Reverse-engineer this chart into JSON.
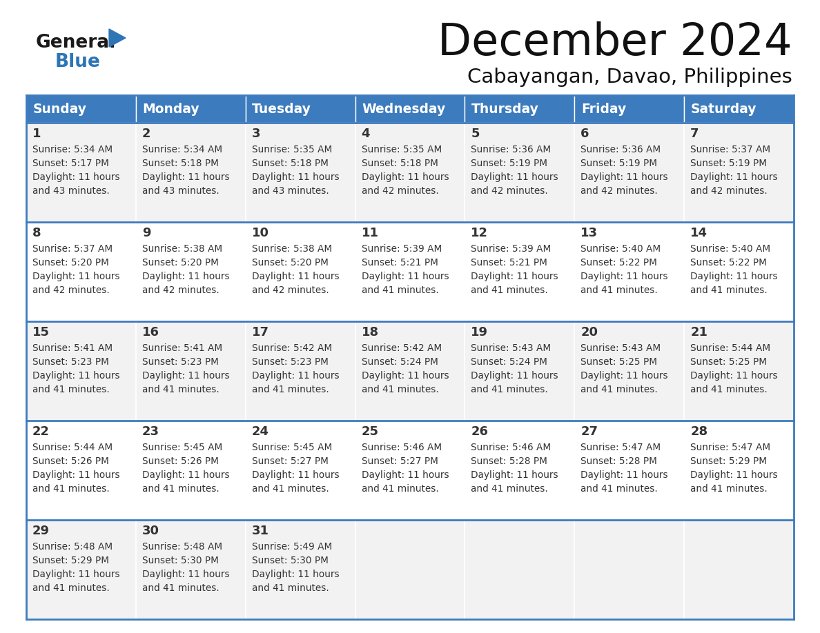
{
  "title": "December 2024",
  "subtitle": "Cabayangan, Davao, Philippines",
  "header_color": "#3C7BBD",
  "header_text_color": "#FFFFFF",
  "row_bg_colors": [
    "#F2F2F2",
    "#FFFFFF"
  ],
  "border_color": "#3C7BBD",
  "cell_border_color": "#FFFFFF",
  "text_color": "#333333",
  "days_of_week": [
    "Sunday",
    "Monday",
    "Tuesday",
    "Wednesday",
    "Thursday",
    "Friday",
    "Saturday"
  ],
  "logo_general_color": "#1a1a1a",
  "logo_blue_color": "#2E75B6",
  "calendar_data": [
    [
      {
        "day": 1,
        "sunrise": "5:34 AM",
        "sunset": "5:17 PM",
        "daylight_hours": 11,
        "daylight_minutes": 43
      },
      {
        "day": 2,
        "sunrise": "5:34 AM",
        "sunset": "5:18 PM",
        "daylight_hours": 11,
        "daylight_minutes": 43
      },
      {
        "day": 3,
        "sunrise": "5:35 AM",
        "sunset": "5:18 PM",
        "daylight_hours": 11,
        "daylight_minutes": 43
      },
      {
        "day": 4,
        "sunrise": "5:35 AM",
        "sunset": "5:18 PM",
        "daylight_hours": 11,
        "daylight_minutes": 42
      },
      {
        "day": 5,
        "sunrise": "5:36 AM",
        "sunset": "5:19 PM",
        "daylight_hours": 11,
        "daylight_minutes": 42
      },
      {
        "day": 6,
        "sunrise": "5:36 AM",
        "sunset": "5:19 PM",
        "daylight_hours": 11,
        "daylight_minutes": 42
      },
      {
        "day": 7,
        "sunrise": "5:37 AM",
        "sunset": "5:19 PM",
        "daylight_hours": 11,
        "daylight_minutes": 42
      }
    ],
    [
      {
        "day": 8,
        "sunrise": "5:37 AM",
        "sunset": "5:20 PM",
        "daylight_hours": 11,
        "daylight_minutes": 42
      },
      {
        "day": 9,
        "sunrise": "5:38 AM",
        "sunset": "5:20 PM",
        "daylight_hours": 11,
        "daylight_minutes": 42
      },
      {
        "day": 10,
        "sunrise": "5:38 AM",
        "sunset": "5:20 PM",
        "daylight_hours": 11,
        "daylight_minutes": 42
      },
      {
        "day": 11,
        "sunrise": "5:39 AM",
        "sunset": "5:21 PM",
        "daylight_hours": 11,
        "daylight_minutes": 41
      },
      {
        "day": 12,
        "sunrise": "5:39 AM",
        "sunset": "5:21 PM",
        "daylight_hours": 11,
        "daylight_minutes": 41
      },
      {
        "day": 13,
        "sunrise": "5:40 AM",
        "sunset": "5:22 PM",
        "daylight_hours": 11,
        "daylight_minutes": 41
      },
      {
        "day": 14,
        "sunrise": "5:40 AM",
        "sunset": "5:22 PM",
        "daylight_hours": 11,
        "daylight_minutes": 41
      }
    ],
    [
      {
        "day": 15,
        "sunrise": "5:41 AM",
        "sunset": "5:23 PM",
        "daylight_hours": 11,
        "daylight_minutes": 41
      },
      {
        "day": 16,
        "sunrise": "5:41 AM",
        "sunset": "5:23 PM",
        "daylight_hours": 11,
        "daylight_minutes": 41
      },
      {
        "day": 17,
        "sunrise": "5:42 AM",
        "sunset": "5:23 PM",
        "daylight_hours": 11,
        "daylight_minutes": 41
      },
      {
        "day": 18,
        "sunrise": "5:42 AM",
        "sunset": "5:24 PM",
        "daylight_hours": 11,
        "daylight_minutes": 41
      },
      {
        "day": 19,
        "sunrise": "5:43 AM",
        "sunset": "5:24 PM",
        "daylight_hours": 11,
        "daylight_minutes": 41
      },
      {
        "day": 20,
        "sunrise": "5:43 AM",
        "sunset": "5:25 PM",
        "daylight_hours": 11,
        "daylight_minutes": 41
      },
      {
        "day": 21,
        "sunrise": "5:44 AM",
        "sunset": "5:25 PM",
        "daylight_hours": 11,
        "daylight_minutes": 41
      }
    ],
    [
      {
        "day": 22,
        "sunrise": "5:44 AM",
        "sunset": "5:26 PM",
        "daylight_hours": 11,
        "daylight_minutes": 41
      },
      {
        "day": 23,
        "sunrise": "5:45 AM",
        "sunset": "5:26 PM",
        "daylight_hours": 11,
        "daylight_minutes": 41
      },
      {
        "day": 24,
        "sunrise": "5:45 AM",
        "sunset": "5:27 PM",
        "daylight_hours": 11,
        "daylight_minutes": 41
      },
      {
        "day": 25,
        "sunrise": "5:46 AM",
        "sunset": "5:27 PM",
        "daylight_hours": 11,
        "daylight_minutes": 41
      },
      {
        "day": 26,
        "sunrise": "5:46 AM",
        "sunset": "5:28 PM",
        "daylight_hours": 11,
        "daylight_minutes": 41
      },
      {
        "day": 27,
        "sunrise": "5:47 AM",
        "sunset": "5:28 PM",
        "daylight_hours": 11,
        "daylight_minutes": 41
      },
      {
        "day": 28,
        "sunrise": "5:47 AM",
        "sunset": "5:29 PM",
        "daylight_hours": 11,
        "daylight_minutes": 41
      }
    ],
    [
      {
        "day": 29,
        "sunrise": "5:48 AM",
        "sunset": "5:29 PM",
        "daylight_hours": 11,
        "daylight_minutes": 41
      },
      {
        "day": 30,
        "sunrise": "5:48 AM",
        "sunset": "5:30 PM",
        "daylight_hours": 11,
        "daylight_minutes": 41
      },
      {
        "day": 31,
        "sunrise": "5:49 AM",
        "sunset": "5:30 PM",
        "daylight_hours": 11,
        "daylight_minutes": 41
      },
      null,
      null,
      null,
      null
    ]
  ]
}
